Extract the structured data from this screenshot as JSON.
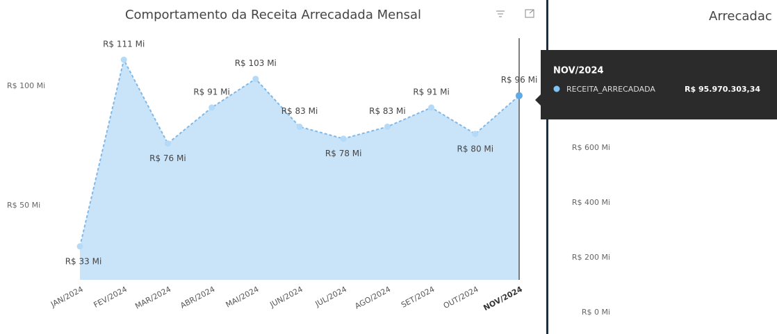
{
  "chart_data": [
    {
      "type": "area",
      "title": "Comportamento da Receita Arrecadada Mensal",
      "categories": [
        "JAN/2024",
        "FEV/2024",
        "MAR/2024",
        "ABR/2024",
        "MAI/2024",
        "JUN/2024",
        "JUL/2024",
        "AGO/2024",
        "SET/2024",
        "OUT/2024",
        "NOV/2024"
      ],
      "series": [
        {
          "name": "RECEITA_ARRECADADA",
          "color": "#7fb8e8",
          "values": [
            33,
            111,
            76,
            91,
            103,
            83,
            78,
            83,
            91,
            80,
            96
          ],
          "value_labels": [
            "R$ 33 Mi",
            "R$ 111 Mi",
            "R$ 76 Mi",
            "R$ 91 Mi",
            "R$ 103 Mi",
            "R$ 83 Mi",
            "R$ 78 Mi",
            "R$ 83 Mi",
            "R$ 91 Mi",
            "R$ 80 Mi",
            "R$ 96 Mi"
          ]
        }
      ],
      "ylim": [
        19,
        120
      ],
      "yticks": [
        {
          "value": 50,
          "label": "R$ 50 Mi"
        },
        {
          "value": 100,
          "label": "R$ 100 Mi"
        }
      ],
      "grid": false
    },
    {
      "type": "bar",
      "title": "Arrecadac",
      "ylim": [
        0,
        1000
      ],
      "yticks": [
        {
          "value": 0,
          "label": "R$ 0 Mi"
        },
        {
          "value": 200,
          "label": "R$ 200 Mi"
        },
        {
          "value": 400,
          "label": "R$ 400 Mi"
        },
        {
          "value": 600,
          "label": "R$ 600 Mi"
        }
      ],
      "grid": false
    }
  ],
  "tooltip": {
    "title": "NOV/2024",
    "series": "RECEITA_ARRECADADA",
    "value": "R$ 95.970.303,34"
  }
}
